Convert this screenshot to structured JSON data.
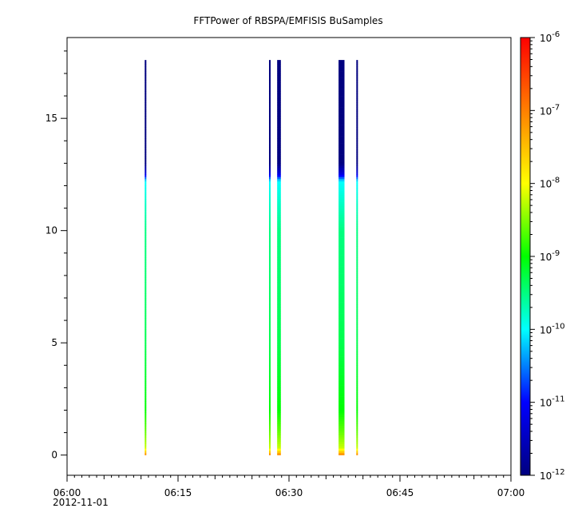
{
  "chart_data": {
    "type": "heatmap",
    "title": "FFTPower of RBSPA/EMFISIS  BuSamples",
    "xlabel": "",
    "ylabel": "",
    "x_axis": {
      "range_minutes": [
        0,
        60
      ],
      "start_label": "06:00",
      "date_label": "2012-11-01",
      "ticks": [
        {
          "minute": 0,
          "label": "06:00"
        },
        {
          "minute": 15,
          "label": "06:15"
        },
        {
          "minute": 30,
          "label": "06:30"
        },
        {
          "minute": 45,
          "label": "06:45"
        },
        {
          "minute": 60,
          "label": "07:00"
        }
      ]
    },
    "y_axis": {
      "range": [
        -0.9,
        18.6
      ],
      "ticks": [
        {
          "value": 0,
          "label": "0"
        },
        {
          "value": 5,
          "label": "5"
        },
        {
          "value": 10,
          "label": "10"
        },
        {
          "value": 15,
          "label": "15"
        }
      ]
    },
    "colorbar": {
      "scale": "log",
      "range_exponent": [
        -12,
        -6
      ],
      "ticks": [
        {
          "exp": -6,
          "base": "10",
          "sup": "-6"
        },
        {
          "exp": -7,
          "base": "10",
          "sup": "-7"
        },
        {
          "exp": -8,
          "base": "10",
          "sup": "-8"
        },
        {
          "exp": -9,
          "base": "10",
          "sup": "-9"
        },
        {
          "exp": -10,
          "base": "10",
          "sup": "-10"
        },
        {
          "exp": -11,
          "base": "10",
          "sup": "-11"
        },
        {
          "exp": -12,
          "base": "10",
          "sup": "-12"
        }
      ],
      "colors": [
        "#00007f",
        "#0000ff",
        "#00ffff",
        "#00ff00",
        "#ffff00",
        "#ff7f00",
        "#ff0000"
      ]
    },
    "bursts": [
      {
        "start_min": 10.5,
        "end_min": 10.7,
        "y_max": 17.5
      },
      {
        "start_min": 27.3,
        "end_min": 27.5,
        "y_max": 17.5
      },
      {
        "start_min": 28.4,
        "end_min": 28.9,
        "y_max": 17.5
      },
      {
        "start_min": 36.7,
        "end_min": 37.5,
        "y_max": 17.5
      },
      {
        "start_min": 39.1,
        "end_min": 39.3,
        "y_max": 17.5
      }
    ],
    "spectrum_profile": [
      {
        "y": 0.0,
        "log_power": -7.0
      },
      {
        "y": 0.3,
        "log_power": -8.2
      },
      {
        "y": 1.0,
        "log_power": -8.6
      },
      {
        "y": 2.0,
        "log_power": -9.0
      },
      {
        "y": 5.0,
        "log_power": -9.3
      },
      {
        "y": 10.0,
        "log_power": -9.5
      },
      {
        "y": 12.2,
        "log_power": -10.0
      },
      {
        "y": 12.5,
        "log_power": -11.2
      },
      {
        "y": 13.0,
        "log_power": -12.0
      },
      {
        "y": 17.5,
        "log_power": -12.0
      }
    ]
  }
}
